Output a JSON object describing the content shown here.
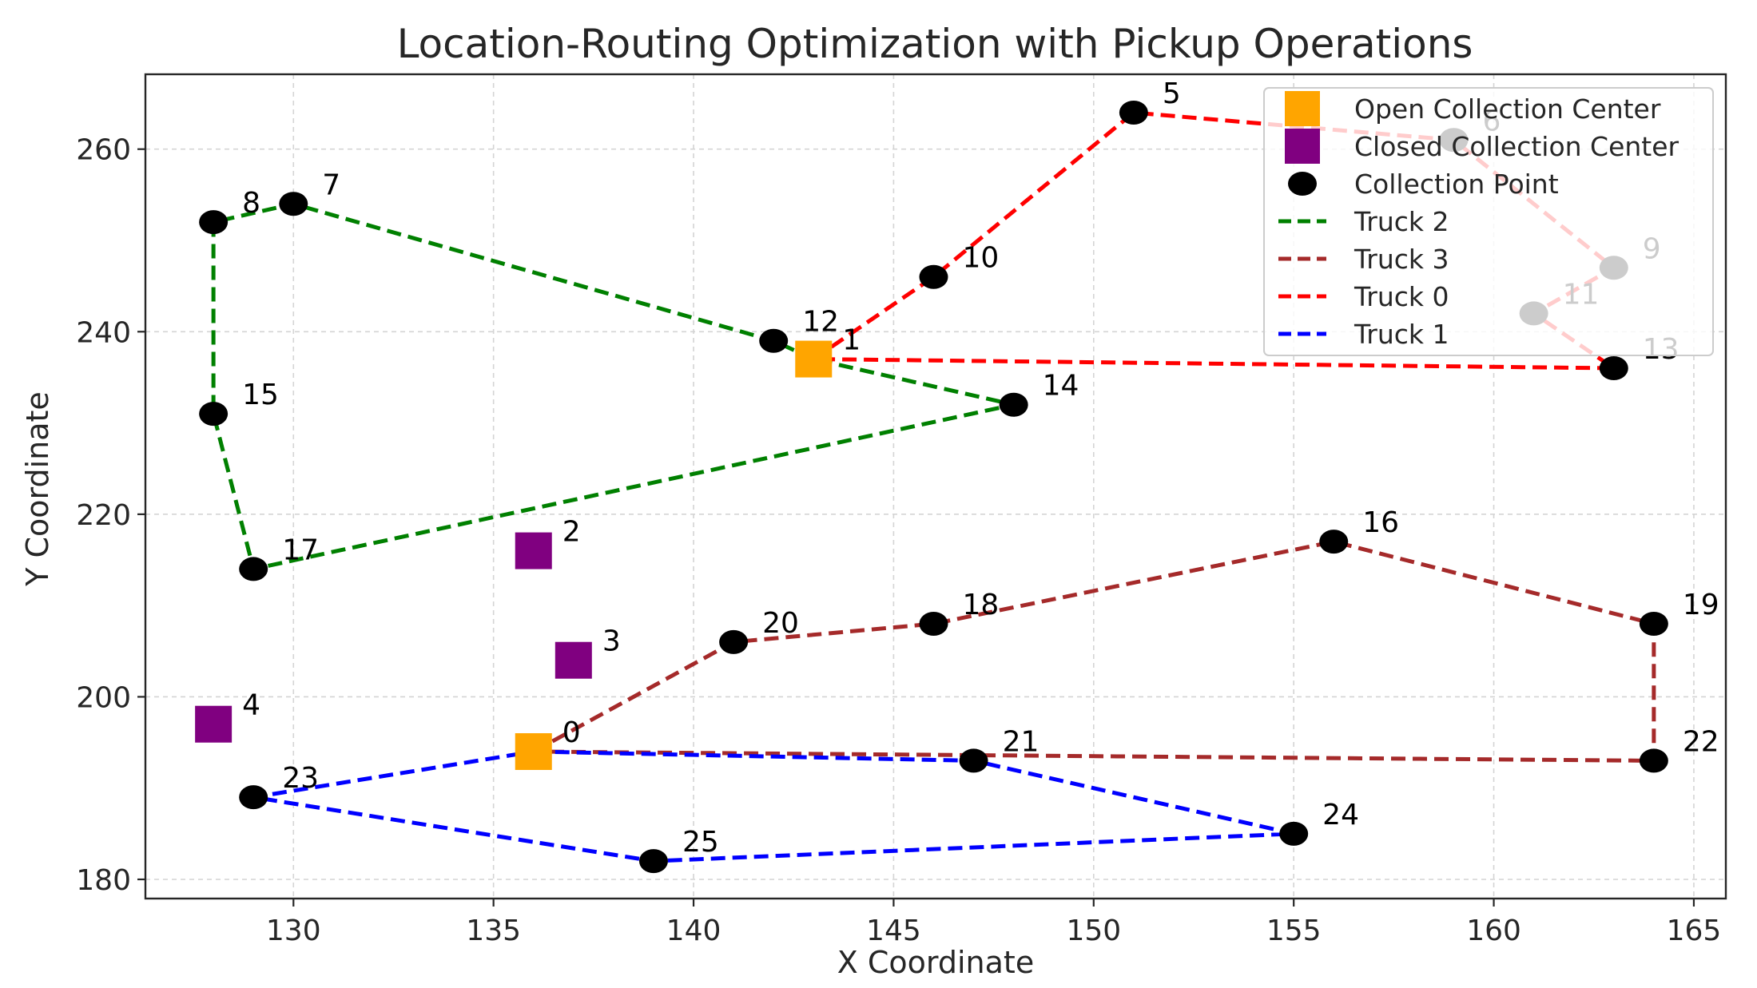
{
  "chart_data": {
    "type": "scatter",
    "title": "Location-Routing Optimization with Pickup Operations",
    "xlabel": "X Coordinate",
    "ylabel": "Y Coordinate",
    "xlim": [
      126.3,
      165.8
    ],
    "ylim": [
      177.9,
      268.2
    ],
    "xticks": [
      130,
      135,
      140,
      145,
      150,
      155,
      160,
      165
    ],
    "yticks": [
      180,
      200,
      220,
      240,
      260
    ],
    "grid": true,
    "legend_position": "top-right",
    "colors": {
      "open_center": "#FFA500",
      "closed_center": "#800080",
      "collection_point": "#000000",
      "truck_2": "#008000",
      "truck_3": "#A52A2A",
      "truck_0": "#FF0000",
      "truck_1": "#0000FF"
    },
    "open_centers": [
      {
        "label": "0",
        "x": 136,
        "y": 194
      },
      {
        "label": "1",
        "x": 143,
        "y": 237
      }
    ],
    "closed_centers": [
      {
        "label": "2",
        "x": 136,
        "y": 216
      },
      {
        "label": "3",
        "x": 137,
        "y": 204
      },
      {
        "label": "4",
        "x": 128,
        "y": 197
      }
    ],
    "collection_points": [
      {
        "label": "5",
        "x": 151,
        "y": 264
      },
      {
        "label": "6",
        "x": 159,
        "y": 261
      },
      {
        "label": "7",
        "x": 130,
        "y": 254
      },
      {
        "label": "8",
        "x": 128,
        "y": 252
      },
      {
        "label": "9",
        "x": 163,
        "y": 247
      },
      {
        "label": "10",
        "x": 146,
        "y": 246
      },
      {
        "label": "11",
        "x": 161,
        "y": 242
      },
      {
        "label": "12",
        "x": 142,
        "y": 239
      },
      {
        "label": "13",
        "x": 163,
        "y": 236
      },
      {
        "label": "14",
        "x": 148,
        "y": 232
      },
      {
        "label": "15",
        "x": 128,
        "y": 231
      },
      {
        "label": "16",
        "x": 156,
        "y": 217
      },
      {
        "label": "17",
        "x": 129,
        "y": 214
      },
      {
        "label": "18",
        "x": 146,
        "y": 208
      },
      {
        "label": "19",
        "x": 164,
        "y": 208
      },
      {
        "label": "20",
        "x": 141,
        "y": 206
      },
      {
        "label": "21",
        "x": 147,
        "y": 193
      },
      {
        "label": "22",
        "x": 164,
        "y": 193
      },
      {
        "label": "23",
        "x": 129,
        "y": 189
      },
      {
        "label": "24",
        "x": 155,
        "y": 185
      },
      {
        "label": "25",
        "x": 139,
        "y": 182
      }
    ],
    "routes": [
      {
        "name": "Truck 2",
        "color": "#008000",
        "path": [
          [
            143,
            237
          ],
          [
            142,
            239
          ],
          [
            130,
            254
          ],
          [
            128,
            252
          ],
          [
            128,
            231
          ],
          [
            129,
            214
          ],
          [
            148,
            232
          ],
          [
            143,
            237
          ]
        ]
      },
      {
        "name": "Truck 3",
        "color": "#A52A2A",
        "path": [
          [
            136,
            194
          ],
          [
            141,
            206
          ],
          [
            146,
            208
          ],
          [
            156,
            217
          ],
          [
            164,
            208
          ],
          [
            164,
            193
          ],
          [
            136,
            194
          ]
        ]
      },
      {
        "name": "Truck 0",
        "color": "#FF0000",
        "path": [
          [
            143,
            237
          ],
          [
            146,
            246
          ],
          [
            151,
            264
          ],
          [
            159,
            261
          ],
          [
            163,
            247
          ],
          [
            161,
            242
          ],
          [
            163,
            236
          ],
          [
            143,
            237
          ]
        ]
      },
      {
        "name": "Truck 1",
        "color": "#0000FF",
        "path": [
          [
            136,
            194
          ],
          [
            147,
            193
          ],
          [
            155,
            185
          ],
          [
            139,
            182
          ],
          [
            129,
            189
          ],
          [
            136,
            194
          ]
        ]
      }
    ],
    "legend": [
      {
        "label": "Open Collection Center",
        "kind": "square",
        "color": "#FFA500"
      },
      {
        "label": "Closed Collection Center",
        "kind": "square",
        "color": "#800080"
      },
      {
        "label": "Collection Point",
        "kind": "dot",
        "color": "#000000"
      },
      {
        "label": "Truck 2",
        "kind": "line",
        "color": "#008000"
      },
      {
        "label": "Truck 3",
        "kind": "line",
        "color": "#A52A2A"
      },
      {
        "label": "Truck 0",
        "kind": "line",
        "color": "#FF0000"
      },
      {
        "label": "Truck 1",
        "kind": "line",
        "color": "#0000FF"
      }
    ]
  }
}
